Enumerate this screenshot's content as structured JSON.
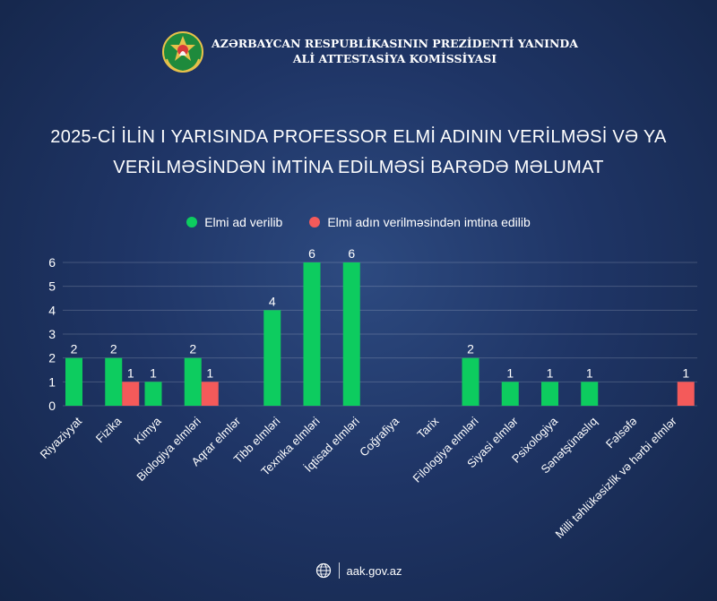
{
  "header": {
    "org_line1": "AZƏRBAYCAN RESPUBLİKASININ PREZİDENTİ YANINDA",
    "org_line2": "ALİ ATTESTASİYA KOMİSSİYASI",
    "emblem_icon": "azerbaijan-emblem-icon"
  },
  "title": {
    "line1": "2025-Cİ İLİN I YARISINDA PROFESSOR ELMİ ADININ VERİLMƏSİ VƏ YA",
    "line2": "VERİLMƏSİNDƏN İMTİNA EDİLMƏSİ BARƏDƏ MƏLUMAT"
  },
  "footer": {
    "url": "aak.gov.az",
    "icon": "globe-icon"
  },
  "colors": {
    "green": "#0dcc5f",
    "red": "#f45a5a"
  },
  "chart_data": {
    "type": "bar",
    "categories": [
      "Riyaziyyat",
      "Fizika",
      "Kimya",
      "Biologiya elmləri",
      "Aqrar elmlər",
      "Tibb elmləri",
      "Texnika elmləri",
      "İqtisad elmləri",
      "Coğrafiya",
      "Tarix",
      "Filologiya elmləri",
      "Siyasi elmlər",
      "Psixologiya",
      "Sənətşünaslıq",
      "Fəlsəfə",
      "Milli təhlükəsizlik və hərbi elmlər"
    ],
    "series": [
      {
        "name": "Elmi ad verilib",
        "color": "#0dcc5f",
        "values": [
          2,
          2,
          1,
          2,
          0,
          4,
          6,
          6,
          0,
          0,
          2,
          1,
          1,
          1,
          0,
          0
        ]
      },
      {
        "name": "Elmi adın verilməsindən imtina edilib",
        "color": "#f45a5a",
        "values": [
          0,
          1,
          0,
          1,
          0,
          0,
          0,
          0,
          0,
          0,
          0,
          0,
          0,
          0,
          0,
          1
        ]
      }
    ],
    "yticks": [
      "0",
      "1",
      "2",
      "3",
      "4",
      "5",
      "6"
    ],
    "ylim": [
      0,
      6
    ],
    "grid": true,
    "legend": "top-center",
    "xlabel": "",
    "ylabel": ""
  }
}
